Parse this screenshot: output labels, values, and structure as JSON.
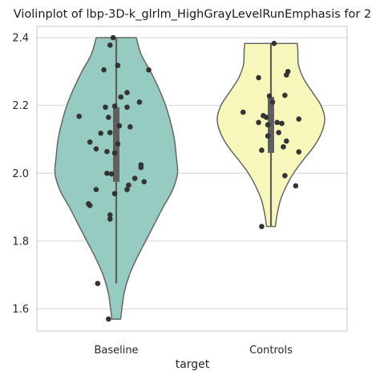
{
  "chart_data": {
    "type": "violin",
    "title": "Violinplot of lbp-3D-k_glrlm_HighGrayLevelRunEmphasis for 2",
    "xlabel": "target",
    "ylabel": "",
    "categories": [
      "Baseline",
      "Controls"
    ],
    "ylim": [
      1.535,
      2.42
    ],
    "yticks": [
      1.6,
      1.8,
      2.0,
      2.2,
      2.4
    ],
    "ytick_labels": [
      "1.6",
      "1.8",
      "2.0",
      "2.2",
      "2.4"
    ],
    "grid": "horizontal",
    "colors": {
      "Baseline": "#96cbc1",
      "Controls": "#f7f7bb",
      "violin_edge": "#666666",
      "box": "#5f5f5f",
      "points": "#333333",
      "grid": "#d6d6d6",
      "frame": "#cccccc"
    },
    "violins": [
      {
        "category": "Baseline",
        "min": 1.57,
        "max": 2.4,
        "q1": 1.975,
        "median": 2.085,
        "q3": 2.195,
        "whisker_low": 1.675,
        "whisker_high": 2.4,
        "profile": [
          [
            1.57,
            0.07
          ],
          [
            1.6,
            0.09
          ],
          [
            1.65,
            0.13
          ],
          [
            1.7,
            0.21
          ],
          [
            1.75,
            0.33
          ],
          [
            1.8,
            0.47
          ],
          [
            1.85,
            0.61
          ],
          [
            1.9,
            0.75
          ],
          [
            1.95,
            0.9
          ],
          [
            2.0,
            0.98
          ],
          [
            2.05,
            0.96
          ],
          [
            2.1,
            0.93
          ],
          [
            2.15,
            0.87
          ],
          [
            2.2,
            0.79
          ],
          [
            2.25,
            0.68
          ],
          [
            2.3,
            0.55
          ],
          [
            2.35,
            0.4
          ],
          [
            2.4,
            0.32
          ]
        ],
        "points": [
          [
            -0.02,
            2.4
          ],
          [
            -0.04,
            2.378
          ],
          [
            0.01,
            2.318
          ],
          [
            -0.08,
            2.305
          ],
          [
            0.21,
            2.305
          ],
          [
            0.07,
            2.238
          ],
          [
            0.03,
            2.225
          ],
          [
            0.15,
            2.21
          ],
          [
            -0.01,
            2.198
          ],
          [
            -0.07,
            2.195
          ],
          [
            0.07,
            2.195
          ],
          [
            -0.24,
            2.168
          ],
          [
            -0.05,
            2.165
          ],
          [
            0.02,
            2.14
          ],
          [
            0.09,
            2.137
          ],
          [
            -0.04,
            2.12
          ],
          [
            -0.1,
            2.118
          ],
          [
            -0.17,
            2.092
          ],
          [
            0.01,
            2.087
          ],
          [
            -0.13,
            2.072
          ],
          [
            -0.06,
            2.064
          ],
          [
            -0.01,
            2.06
          ],
          [
            0.16,
            2.025
          ],
          [
            0.16,
            2.017
          ],
          [
            -0.06,
            2.0
          ],
          [
            -0.03,
            1.998
          ],
          [
            0.12,
            1.985
          ],
          [
            0.18,
            1.975
          ],
          [
            0.08,
            1.965
          ],
          [
            -0.13,
            1.952
          ],
          [
            0.07,
            1.952
          ],
          [
            -0.01,
            1.94
          ],
          [
            -0.18,
            1.91
          ],
          [
            -0.17,
            1.905
          ],
          [
            -0.04,
            1.877
          ],
          [
            -0.04,
            1.865
          ],
          [
            -0.12,
            1.675
          ],
          [
            -0.05,
            1.57
          ]
        ]
      },
      {
        "category": "Controls",
        "min": 1.843,
        "max": 2.383,
        "q1": 2.06,
        "median": 2.145,
        "q3": 2.225,
        "whisker_low": 1.843,
        "whisker_high": 2.383,
        "profile": [
          [
            1.843,
            0.07
          ],
          [
            1.88,
            0.1
          ],
          [
            1.92,
            0.15
          ],
          [
            1.96,
            0.24
          ],
          [
            2.0,
            0.36
          ],
          [
            2.04,
            0.52
          ],
          [
            2.08,
            0.69
          ],
          [
            2.12,
            0.81
          ],
          [
            2.16,
            0.86
          ],
          [
            2.2,
            0.8
          ],
          [
            2.24,
            0.66
          ],
          [
            2.28,
            0.52
          ],
          [
            2.32,
            0.44
          ],
          [
            2.36,
            0.43
          ],
          [
            2.383,
            0.42
          ]
        ],
        "points": [
          [
            0.02,
            2.383
          ],
          [
            0.11,
            2.3
          ],
          [
            0.1,
            2.29
          ],
          [
            -0.08,
            2.282
          ],
          [
            0.09,
            2.23
          ],
          [
            -0.01,
            2.228
          ],
          [
            0.01,
            2.21
          ],
          [
            -0.18,
            2.18
          ],
          [
            -0.05,
            2.17
          ],
          [
            -0.03,
            2.165
          ],
          [
            0.18,
            2.16
          ],
          [
            -0.08,
            2.15
          ],
          [
            0.04,
            2.15
          ],
          [
            0.07,
            2.147
          ],
          [
            -0.02,
            2.143
          ],
          [
            0.05,
            2.12
          ],
          [
            -0.02,
            2.11
          ],
          [
            0.1,
            2.095
          ],
          [
            0.08,
            2.078
          ],
          [
            -0.06,
            2.068
          ],
          [
            0.18,
            2.063
          ],
          [
            0.09,
            1.993
          ],
          [
            0.16,
            1.963
          ],
          [
            -0.06,
            1.843
          ]
        ]
      }
    ]
  }
}
